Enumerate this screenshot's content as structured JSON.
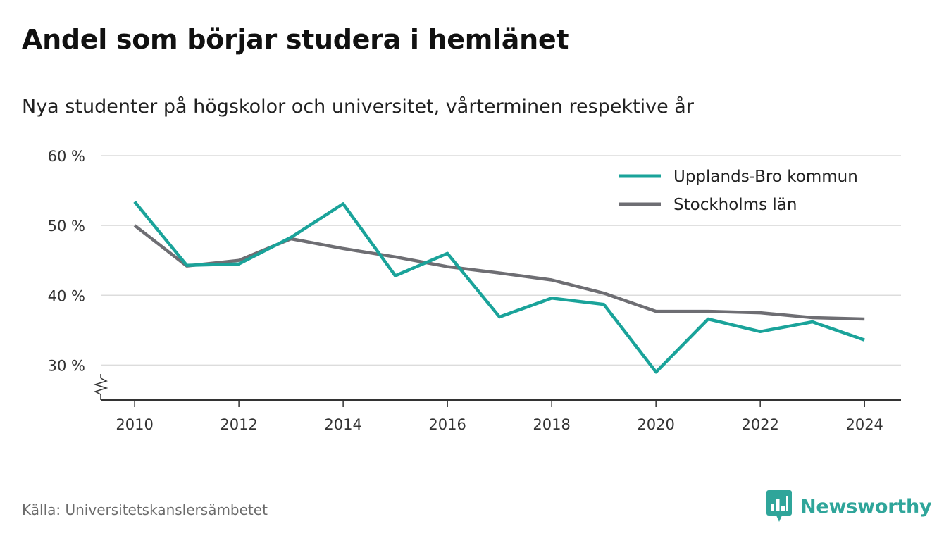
{
  "header": {
    "title": "Andel som börjar studera i hemlänet",
    "subtitle": "Nya studenter på högskolor och universitet, vårterminen respektive år"
  },
  "footer": {
    "source": "Källa: Universitetskanslersämbetet",
    "brand": "Newsworthy",
    "brand_icon": "newsworthy-logo-icon"
  },
  "colors": {
    "upplands_bro": "#1aa39a",
    "stockholms_lan": "#6e6e73",
    "grid": "#dcdcdc",
    "axis": "#333333",
    "brand": "#2fa59a"
  },
  "chart_data": {
    "type": "line",
    "title": "Andel som börjar studera i hemlänet",
    "subtitle": "Nya studenter på högskolor och universitet, vårterminen respektive år",
    "x": [
      2010,
      2011,
      2012,
      2013,
      2014,
      2015,
      2016,
      2017,
      2018,
      2019,
      2020,
      2021,
      2022,
      2023,
      2024
    ],
    "x_ticks": [
      2010,
      2012,
      2014,
      2016,
      2018,
      2020,
      2022,
      2024
    ],
    "x_tick_labels": [
      "2010",
      "2012",
      "2014",
      "2016",
      "2018",
      "2020",
      "2022",
      "2024"
    ],
    "y_ticks": [
      30,
      40,
      50,
      60
    ],
    "y_tick_labels": [
      "30 %",
      "40 %",
      "50 %",
      "60 %"
    ],
    "ylim": [
      25,
      60
    ],
    "xlim": [
      2009.35,
      2024.7
    ],
    "y_axis_break": true,
    "grid": "horizontal",
    "legend_position": "top-right",
    "series": [
      {
        "name": "Upplands-Bro kommun",
        "color": "#1aa39a",
        "values": [
          53.4,
          44.3,
          44.5,
          48.3,
          53.1,
          42.8,
          46.0,
          36.9,
          39.6,
          38.7,
          29.0,
          36.6,
          34.8,
          36.2,
          33.6
        ]
      },
      {
        "name": "Stockholms län",
        "color": "#6e6e73",
        "values": [
          50.0,
          44.2,
          45.0,
          48.1,
          46.7,
          45.5,
          44.1,
          43.2,
          42.2,
          40.3,
          37.7,
          37.7,
          37.5,
          36.8,
          36.6
        ]
      }
    ]
  }
}
